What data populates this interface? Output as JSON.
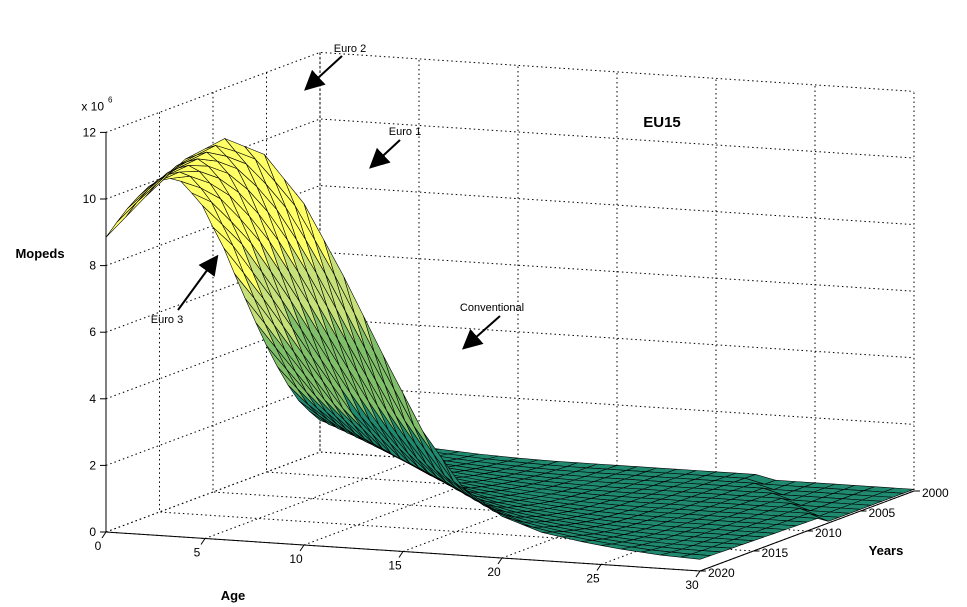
{
  "chart_data": {
    "type": "surface",
    "region_label": "EU15",
    "zlabel": "Mopeds",
    "xlabel": "Age",
    "ylabel": "Years",
    "z_multiplier": "x 10",
    "z_exponent": "6",
    "zlim": [
      0,
      12
    ],
    "xlim": [
      0,
      30
    ],
    "ylim": [
      2000,
      2020
    ],
    "z_ticks": [
      "0",
      "2",
      "4",
      "6",
      "8",
      "10",
      "12"
    ],
    "x_ticks": [
      "0",
      "5",
      "10",
      "15",
      "20",
      "25",
      "30"
    ],
    "y_ticks": [
      "2000",
      "2005",
      "2010",
      "2015",
      "2020"
    ],
    "ridge_profile_millions": {
      "age": [
        0,
        2,
        4,
        6,
        8,
        10,
        12,
        14,
        16,
        18,
        20,
        22,
        24,
        26,
        28,
        30
      ],
      "value": [
        8.8,
        10.1,
        11.3,
        12.0,
        11.6,
        10.2,
        8.1,
        5.8,
        3.6,
        2.0,
        1.2,
        0.8,
        0.6,
        0.45,
        0.35,
        0.3
      ]
    },
    "emission_bands": [
      {
        "name": "Euro 3",
        "color": "#ffff66"
      },
      {
        "name": "Euro 2",
        "color": "#c6e07a"
      },
      {
        "name": "Euro 1",
        "color": "#7fbf6a"
      },
      {
        "name": "Conventional",
        "color": "#1f8a6f"
      }
    ],
    "annotations": [
      "Euro 2",
      "Euro 1",
      "Euro 3",
      "Conventional"
    ],
    "grid": true
  }
}
